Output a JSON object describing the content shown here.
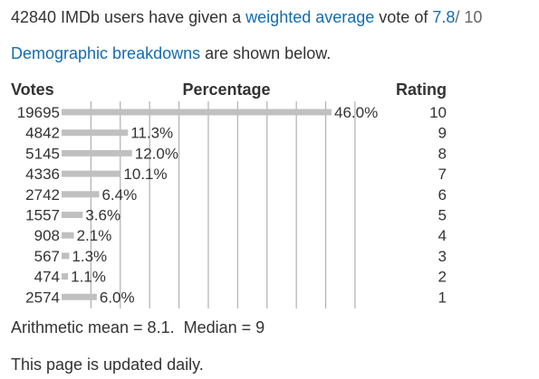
{
  "summary": {
    "prefix": "42840 IMDb users have given a",
    "weighted_link": "weighted average",
    "middle": "vote of",
    "score": "7.8",
    "suffix": "/ 10"
  },
  "demographics": {
    "link": "Demographic breakdowns",
    "suffix": "are shown below."
  },
  "chart_data": {
    "type": "bar",
    "columns": [
      "Votes",
      "Percentage",
      "Rating"
    ],
    "ratings": [
      "10",
      "9",
      "8",
      "7",
      "6",
      "5",
      "4",
      "3",
      "2",
      "1"
    ],
    "votes": [
      "19695",
      "4842",
      "5145",
      "4336",
      "2742",
      "1557",
      "908",
      "567",
      "474",
      "2574"
    ],
    "percent_labels": [
      "46.0%",
      "11.3%",
      "12.0%",
      "10.1%",
      "6.4%",
      "3.6%",
      "2.1%",
      "1.3%",
      "1.1%",
      "6.0%"
    ],
    "values": [
      46.0,
      11.3,
      12.0,
      10.1,
      6.4,
      3.6,
      2.1,
      1.3,
      1.1,
      6.0
    ],
    "grid": true,
    "bar_color": "#c0c0c0",
    "grid_color": "#b0b0b0"
  },
  "stats": {
    "text": "Arithmetic mean = 8.1.  Median = 9"
  },
  "footer": {
    "text": "This page is updated daily."
  }
}
